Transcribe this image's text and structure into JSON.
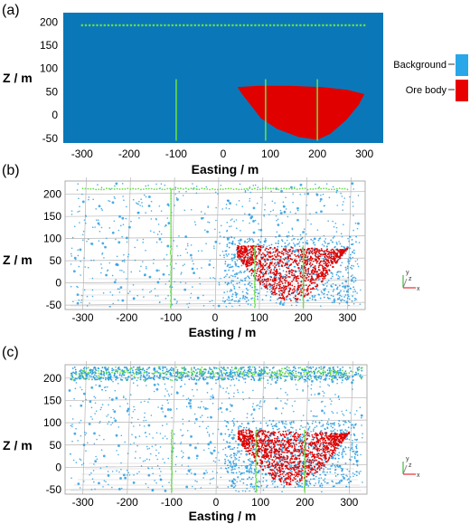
{
  "panels": [
    {
      "label": "(a)",
      "type": "section",
      "xlabel": "Easting / m",
      "ylabel": "Z / m",
      "xlim": [
        -340,
        340
      ],
      "ylim": [
        -60,
        220
      ],
      "xticks": [
        -300,
        -200,
        -100,
        0,
        100,
        200,
        300
      ],
      "yticks": [
        200,
        150,
        100,
        50,
        0,
        -50
      ],
      "background_color": "#0a78b8",
      "ore_color": "#e00000",
      "survey_line": {
        "x": [
          -300,
          300
        ],
        "y": 193,
        "color": "#66dd44"
      },
      "boreholes": [
        {
          "x": -100,
          "y": [
            -55,
            77
          ]
        },
        {
          "x": 90,
          "y": [
            -55,
            77
          ]
        },
        {
          "x": 200,
          "y": [
            -55,
            77
          ]
        }
      ],
      "ore_body": {
        "x": [
          30,
          75,
          140,
          210,
          265,
          300,
          288,
          262,
          228,
          200,
          160,
          115,
          80,
          58,
          40
        ],
        "y": [
          60,
          63,
          63,
          60,
          54,
          45,
          22,
          -10,
          -40,
          -53,
          -47,
          -30,
          -7,
          22,
          45
        ]
      }
    },
    {
      "label": "(b)",
      "type": "point-cloud",
      "xlabel": "Easting / m",
      "ylabel": "Z / m",
      "xlim": [
        -340,
        340
      ],
      "ylim": [
        -60,
        230
      ],
      "xticks": [
        -300,
        -200,
        -100,
        0,
        100,
        200,
        300
      ],
      "yticks": [
        200,
        150,
        100,
        50,
        0,
        -50
      ],
      "bg_point_color": "#2a9de0",
      "ore_point_color": "#e00000",
      "line_color": "#66dd44"
    },
    {
      "label": "(c)",
      "type": "point-cloud",
      "xlabel": "Easting / m",
      "ylabel": "Z / m",
      "xlim": [
        -340,
        340
      ],
      "ylim": [
        -60,
        230
      ],
      "xticks": [
        -300,
        -200,
        -100,
        0,
        100,
        200,
        300
      ],
      "yticks": [
        200,
        150,
        100,
        50,
        0,
        -50
      ],
      "bg_point_color": "#2a9de0",
      "ore_point_color": "#e00000",
      "line_color": "#66dd44"
    }
  ],
  "legend": {
    "items": [
      {
        "label": "Background",
        "color": "#29a7e8"
      },
      {
        "label": "Ore body",
        "color": "#e80000"
      }
    ]
  },
  "axis_triad": {
    "x_label": "x",
    "y_label": "y",
    "z_label": "z",
    "x_color": "#e00000",
    "y_color": "#22aa22",
    "z_color": "#888888"
  }
}
